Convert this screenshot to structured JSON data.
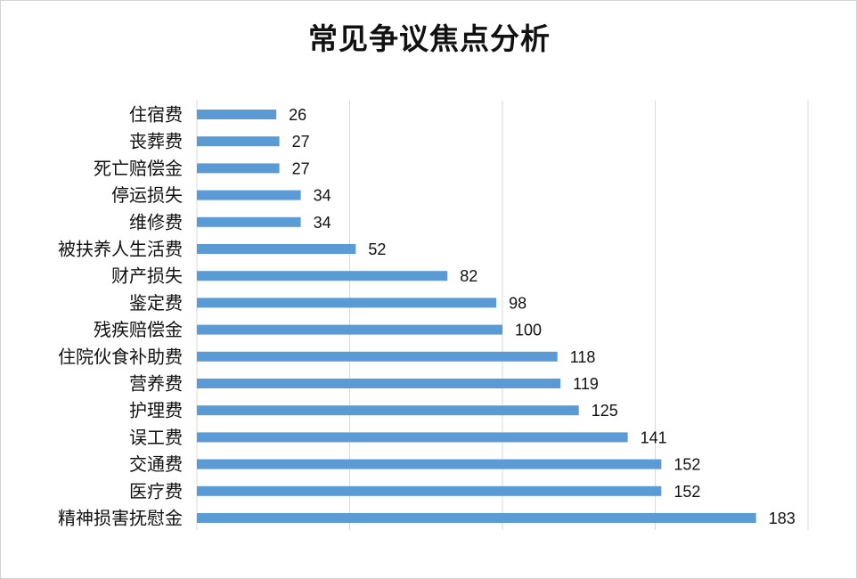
{
  "chart_data": {
    "type": "bar",
    "orientation": "horizontal",
    "title": "常见争议焦点分析",
    "categories": [
      "住宿费",
      "丧葬费",
      "死亡赔偿金",
      "停运损失",
      "维修费",
      "被扶养人生活费",
      "财产损失",
      "鉴定费",
      "残疾赔偿金",
      "住院伙食补助费",
      "营养费",
      "护理费",
      "误工费",
      "交通费",
      "医疗费",
      "精神损害抚慰金"
    ],
    "values": [
      26,
      27,
      27,
      34,
      34,
      52,
      82,
      98,
      100,
      118,
      119,
      125,
      141,
      152,
      152,
      183
    ],
    "xlim": [
      0,
      200
    ],
    "gridlines": [
      0,
      50,
      100,
      150,
      200
    ],
    "grid": true,
    "legend": "none",
    "bar_color": "#5b9bd5",
    "grid_color": "#d9d9d9",
    "data_labels": true
  }
}
